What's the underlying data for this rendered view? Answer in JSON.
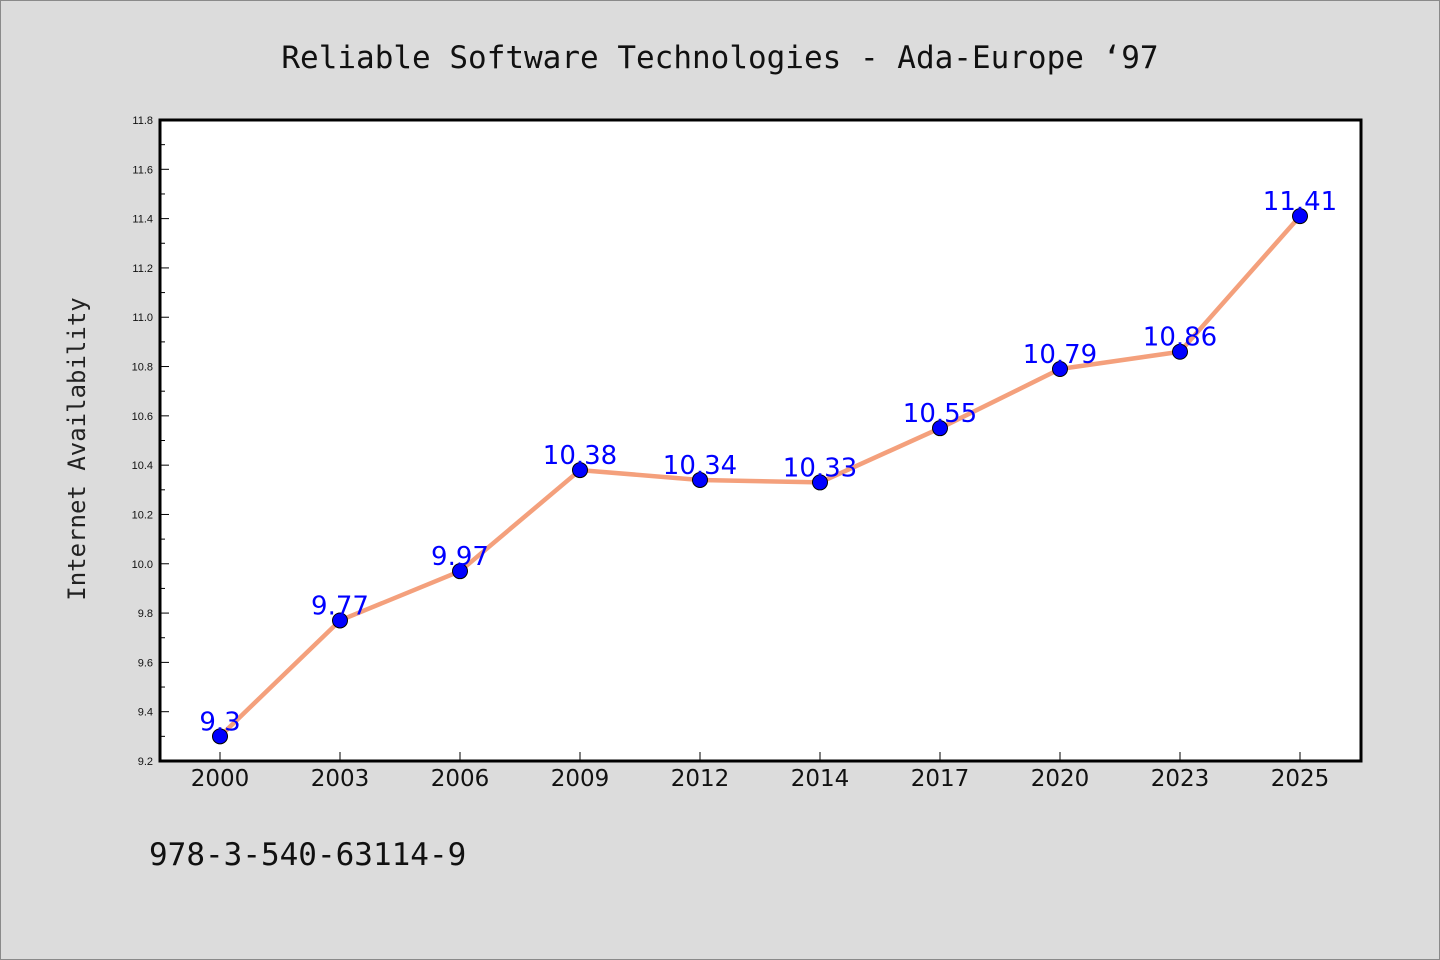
{
  "chart_data": {
    "type": "line",
    "title": "Reliable Software Technologies - Ada-Europe  ‘97",
    "ylabel": "Internet Availability",
    "xlabel": "",
    "categories": [
      "2000",
      "2003",
      "2006",
      "2009",
      "2012",
      "2014",
      "2017",
      "2020",
      "2023",
      "2025"
    ],
    "series": [
      {
        "values": [
          9.3,
          9.77,
          9.97,
          10.38,
          10.34,
          10.33,
          10.55,
          10.79,
          10.86,
          11.41
        ],
        "data_labels": [
          "9.3",
          "9.77",
          "9.97",
          "10.38",
          "10.34",
          "10.33",
          "10.55",
          "10.79",
          "10.86",
          "11.41"
        ]
      }
    ],
    "ylim": [
      9.2,
      11.8
    ],
    "yticks": [
      "9.2",
      "9.4",
      "9.6",
      "9.8",
      "10.0",
      "10.2",
      "10.4",
      "10.6",
      "10.8",
      "11.0",
      "11.2",
      "11.4",
      "11.6",
      "11.8"
    ],
    "grid": false,
    "legend": "none",
    "line_color": "#f4a07c",
    "marker_color": "#0000ff",
    "label_color": "#0000ff",
    "footnote": "978-3-540-63114-9"
  }
}
